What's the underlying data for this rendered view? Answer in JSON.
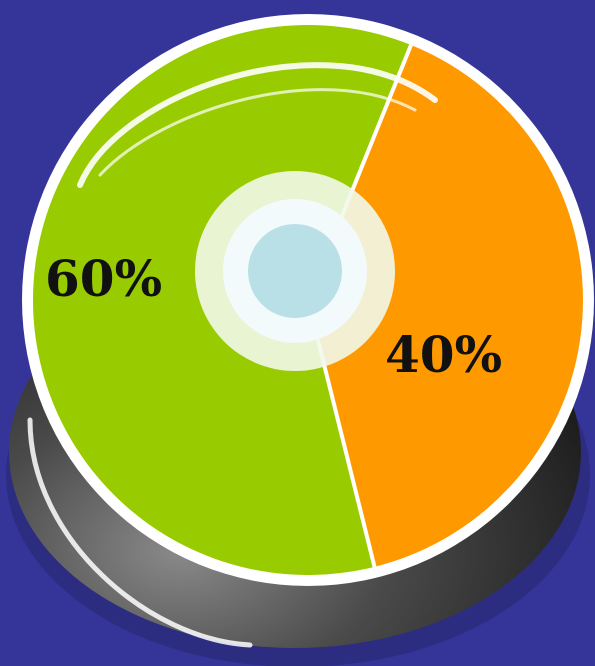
{
  "chart_data": {
    "type": "pie",
    "style": "3d-donut",
    "slices": [
      {
        "value": 60,
        "label": "60%",
        "color": "#99cc00"
      },
      {
        "value": 40,
        "label": "40%",
        "color": "#ff9900"
      }
    ],
    "base_color": "#3a3a3a",
    "rim_color": "#ffffff",
    "hole_color": "#b9e0e6",
    "background": "#353599"
  }
}
